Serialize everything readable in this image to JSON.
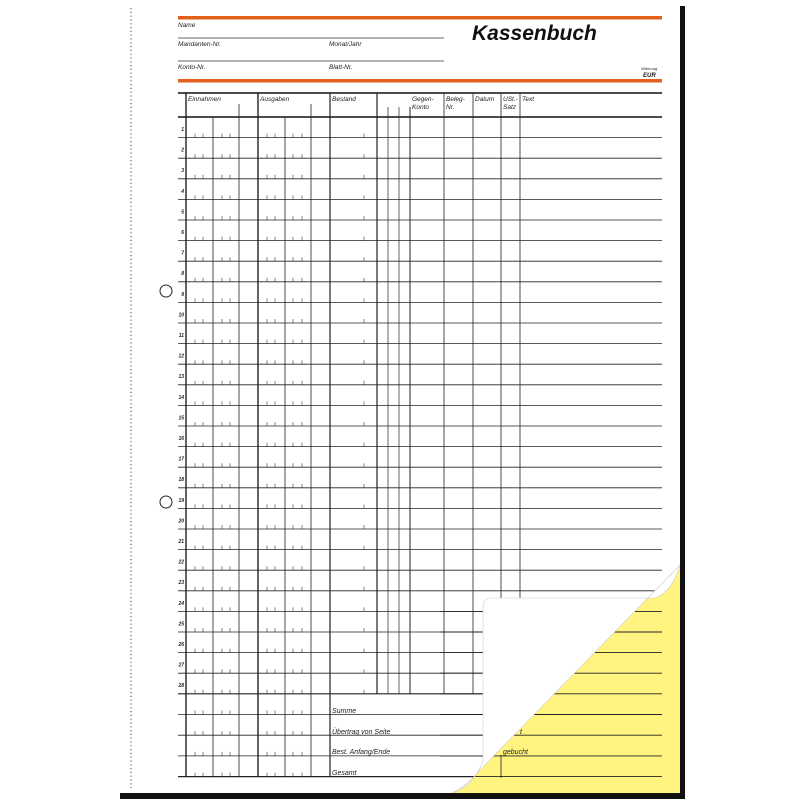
{
  "form": {
    "title": "Kassenbuch",
    "currency_caption": "Währung",
    "currency": "EUR",
    "fields": {
      "name": "Name",
      "mandanten_nr": "Mandanten-Nr.",
      "monat_jahr": "Monat/Jahr",
      "konto_nr": "Konto-Nr.",
      "blatt_nr": "Blatt-Nr."
    },
    "columns": {
      "einnahmen": "Einnahmen",
      "ausgaben": "Ausgaben",
      "bestand": "Bestand",
      "gegenkonto_1": "Gegen-",
      "gegenkonto_2": "Konto",
      "beleg_1": "Beleg-",
      "beleg_2": "Nr.",
      "datum": "Datum",
      "ust_1": "USt.-",
      "ust_2": "Satz",
      "text": "Text"
    },
    "row_numbers": [
      "1",
      "2",
      "3",
      "4",
      "5",
      "6",
      "7",
      "8",
      "9",
      "10",
      "11",
      "12",
      "13",
      "14",
      "15",
      "16",
      "17",
      "18",
      "19",
      "20",
      "21",
      "22",
      "23",
      "24",
      "25",
      "26",
      "27",
      "28"
    ],
    "footer": {
      "summe": "Summe",
      "uebertrag": "Übertrag von Seite",
      "bestand": "Best. Anfang/Ende",
      "gesamt": "Gesamt"
    },
    "copy_sheet": {
      "partial_label": "t",
      "gebucht": "gebucht"
    }
  },
  "colors": {
    "accent": "#e0601c",
    "copy_sheet": "#fff480",
    "shadow": "#111111"
  }
}
